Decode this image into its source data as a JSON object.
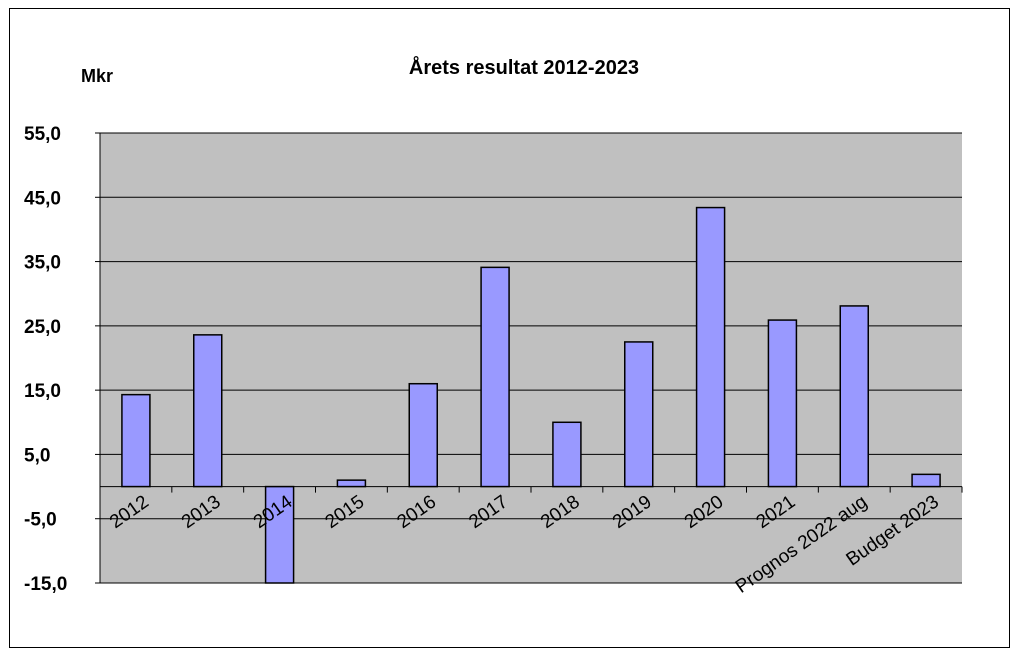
{
  "chart_data": {
    "type": "bar",
    "title": "Årets resultat  2012-2023",
    "ylabel": "Mkr",
    "categories": [
      "2012",
      "2013",
      "2014",
      "2015",
      "2016",
      "2017",
      "2018",
      "2019",
      "2020",
      "2021",
      "Prognos 2022 aug",
      "Budget 2023"
    ],
    "values": [
      14.3,
      23.6,
      -15.0,
      1.0,
      16.0,
      34.1,
      10.0,
      22.5,
      43.4,
      25.9,
      28.1,
      1.9
    ],
    "ylim": [
      -15,
      55
    ],
    "yticks": [
      55,
      45,
      35,
      25,
      15,
      5,
      -5,
      -15
    ],
    "ytick_labels": [
      "55,0",
      "45,0",
      "35,0",
      "25,0",
      "15,0",
      "5,0",
      "-5,0",
      "-15,0"
    ],
    "grid": true,
    "legend": "none",
    "colors": {
      "bar": "#9999FF",
      "plot_area": "#C0C0C0",
      "bar_edge": "#000000",
      "gridline": "#000000"
    }
  }
}
